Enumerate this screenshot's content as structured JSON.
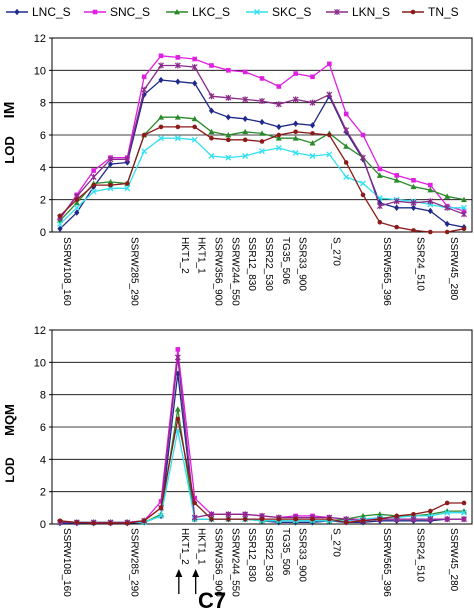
{
  "figure": {
    "caption": "C7",
    "markers": [
      "SSRW108_160",
      "SSRW285_290",
      "HKT1_2",
      "HKT1_1",
      "SSRW356_900",
      "SSRW244_550",
      "SSR12_830",
      "SSR22_530",
      "TG35_506",
      "SSR33_900",
      "S_270",
      "SSRW565_396",
      "SSR24_510",
      "SSRW45_280"
    ],
    "arrow_markers": [
      "HKT1_2",
      "HKT1_1"
    ]
  },
  "legend": [
    {
      "name": "LNC_S",
      "color": "#1f2a8a",
      "marker": "diamond"
    },
    {
      "name": "SNC_S",
      "color": "#e020e0",
      "marker": "square"
    },
    {
      "name": "LKC_S",
      "color": "#2a8a2a",
      "marker": "triangle"
    },
    {
      "name": "SKC_S",
      "color": "#33e0f0",
      "marker": "x"
    },
    {
      "name": "LKN_S",
      "color": "#8a2a8a",
      "marker": "star"
    },
    {
      "name": "TN_S",
      "color": "#8b1a1a",
      "marker": "circle"
    }
  ],
  "chart_data": [
    {
      "type": "line",
      "ylabel_left": "LOD",
      "ylabel_right": "IM",
      "ylim": [
        0,
        12
      ],
      "yticks": [
        0,
        2,
        4,
        6,
        8,
        10,
        12
      ],
      "x": [
        0,
        1,
        2,
        3,
        4,
        5,
        6,
        7,
        8,
        9,
        10,
        11,
        12,
        13,
        14,
        15,
        16,
        17,
        18,
        19,
        20,
        21,
        22,
        23,
        24
      ],
      "series": [
        {
          "name": "LNC_S",
          "values": [
            0.2,
            1.2,
            2.8,
            4.2,
            4.3,
            8.5,
            9.4,
            9.3,
            9.2,
            7.5,
            7.1,
            7.0,
            6.8,
            6.5,
            6.7,
            6.6,
            8.4,
            6.2,
            4.5,
            1.8,
            1.5,
            1.5,
            1.3,
            0.5,
            0.3
          ]
        },
        {
          "name": "SNC_S",
          "values": [
            0.8,
            2.3,
            3.8,
            4.6,
            4.6,
            9.6,
            10.9,
            10.8,
            10.7,
            10.3,
            10.0,
            9.9,
            9.5,
            9.0,
            9.8,
            9.6,
            10.4,
            7.3,
            6.0,
            3.9,
            3.5,
            3.2,
            2.9,
            1.6,
            1.3
          ]
        },
        {
          "name": "LKC_S",
          "values": [
            0.7,
            1.8,
            3.0,
            3.1,
            3.0,
            6.0,
            7.1,
            7.1,
            7.0,
            6.2,
            6.0,
            6.2,
            6.1,
            5.8,
            5.8,
            5.5,
            6.1,
            5.3,
            4.6,
            3.5,
            3.2,
            2.8,
            2.6,
            2.2,
            2.0
          ]
        },
        {
          "name": "SKC_S",
          "values": [
            0.5,
            1.5,
            2.5,
            2.7,
            2.7,
            5.0,
            5.8,
            5.8,
            5.7,
            4.7,
            4.6,
            4.7,
            5.0,
            5.2,
            4.9,
            4.7,
            4.8,
            3.4,
            3.0,
            2.1,
            2.0,
            1.9,
            1.7,
            1.5,
            1.5
          ]
        },
        {
          "name": "LKN_S",
          "values": [
            0.9,
            2.2,
            3.4,
            4.5,
            4.5,
            8.8,
            10.3,
            10.3,
            10.2,
            8.4,
            8.3,
            8.2,
            8.1,
            7.9,
            8.2,
            8.0,
            8.5,
            6.3,
            4.6,
            1.6,
            1.9,
            1.8,
            1.9,
            1.5,
            1.1
          ]
        },
        {
          "name": "TN_S",
          "values": [
            1.0,
            2.0,
            2.9,
            2.9,
            3.0,
            6.0,
            6.5,
            6.5,
            6.5,
            5.8,
            5.7,
            5.7,
            5.6,
            6.0,
            6.2,
            6.1,
            6.0,
            4.3,
            2.3,
            0.6,
            0.3,
            0.1,
            0.0,
            0.0,
            0.2
          ]
        }
      ]
    },
    {
      "type": "line",
      "ylabel_left": "LOD",
      "ylabel_right": "MQM",
      "ylim": [
        0,
        12
      ],
      "yticks": [
        0,
        2,
        4,
        6,
        8,
        10,
        12
      ],
      "x": [
        0,
        1,
        2,
        3,
        4,
        5,
        6,
        7,
        8,
        9,
        10,
        11,
        12,
        13,
        14,
        15,
        16,
        17,
        18,
        19,
        20,
        21,
        22,
        23,
        24
      ],
      "series": [
        {
          "name": "LNC_S",
          "values": [
            0.05,
            0.05,
            0.05,
            0.05,
            0.05,
            0.1,
            0.5,
            9.3,
            0.3,
            0.3,
            0.3,
            0.3,
            0.2,
            0.1,
            0.1,
            0.1,
            0.2,
            0.1,
            0.1,
            0.2,
            0.2,
            0.2,
            0.2,
            0.3,
            0.3
          ]
        },
        {
          "name": "SNC_S",
          "values": [
            0.1,
            0.1,
            0.1,
            0.1,
            0.1,
            0.2,
            1.4,
            10.8,
            1.6,
            0.6,
            0.6,
            0.6,
            0.5,
            0.4,
            0.5,
            0.5,
            0.4,
            0.3,
            0.3,
            0.3,
            0.3,
            0.3,
            0.3,
            0.3,
            0.3
          ]
        },
        {
          "name": "LKC_S",
          "values": [
            0.1,
            0.1,
            0.1,
            0.1,
            0.1,
            0.1,
            0.6,
            7.1,
            0.3,
            0.3,
            0.3,
            0.3,
            0.2,
            0.2,
            0.2,
            0.2,
            0.2,
            0.3,
            0.5,
            0.6,
            0.5,
            0.5,
            0.6,
            0.8,
            0.8
          ]
        },
        {
          "name": "SKC_S",
          "values": [
            0.1,
            0.1,
            0.1,
            0.1,
            0.1,
            0.1,
            0.5,
            5.8,
            0.3,
            0.3,
            0.3,
            0.3,
            0.2,
            0.2,
            0.2,
            0.2,
            0.2,
            0.2,
            0.3,
            0.4,
            0.4,
            0.5,
            0.5,
            0.7,
            0.7
          ]
        },
        {
          "name": "LKN_S",
          "values": [
            0.1,
            0.1,
            0.1,
            0.1,
            0.1,
            0.2,
            1.0,
            10.3,
            0.4,
            0.6,
            0.6,
            0.6,
            0.5,
            0.4,
            0.4,
            0.4,
            0.4,
            0.3,
            0.2,
            0.3,
            0.3,
            0.3,
            0.3,
            0.3,
            0.3
          ]
        },
        {
          "name": "TN_S",
          "values": [
            0.2,
            0.1,
            0.05,
            0.05,
            0.05,
            0.2,
            1.0,
            6.5,
            1.3,
            0.3,
            0.3,
            0.3,
            0.3,
            0.3,
            0.3,
            0.3,
            0.3,
            0.1,
            0.2,
            0.3,
            0.5,
            0.6,
            0.8,
            1.3,
            1.3
          ]
        }
      ]
    }
  ]
}
